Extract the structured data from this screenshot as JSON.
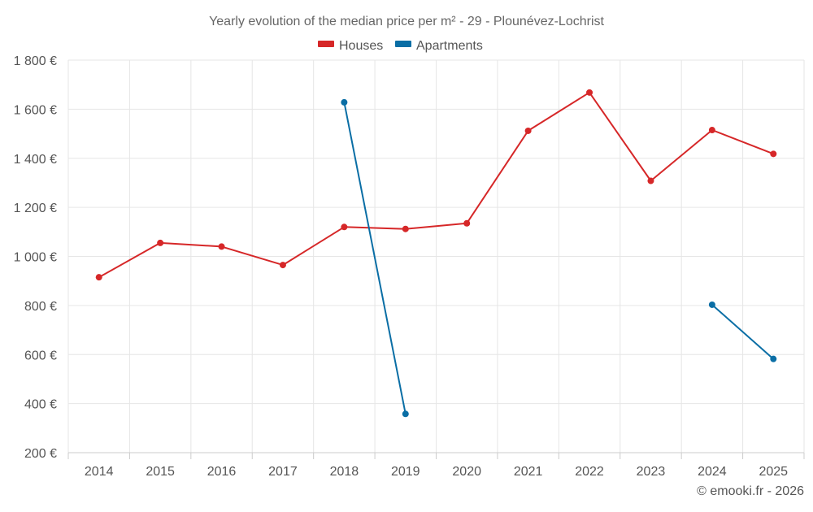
{
  "chart_data": {
    "type": "line",
    "title": "Yearly evolution of the median price per m² - 29 - Plounévez-Lochrist",
    "categories": [
      "2014",
      "2015",
      "2016",
      "2017",
      "2018",
      "2019",
      "2020",
      "2021",
      "2022",
      "2023",
      "2024",
      "2025"
    ],
    "series": [
      {
        "name": "Houses",
        "color": "#d62728",
        "values": [
          915,
          1055,
          1040,
          965,
          1120,
          1112,
          1135,
          1512,
          1668,
          1308,
          1515,
          1418
        ]
      },
      {
        "name": "Apartments",
        "color": "#0a6ea5",
        "values": [
          null,
          null,
          null,
          null,
          1628,
          358,
          null,
          null,
          null,
          null,
          803,
          582
        ]
      }
    ],
    "ylim": [
      200,
      1800
    ],
    "yticks": [
      200,
      400,
      600,
      800,
      1000,
      1200,
      1400,
      1600,
      1800
    ],
    "ytick_labels": [
      "200 €",
      "400 €",
      "600 €",
      "800 €",
      "1 000 €",
      "1 200 €",
      "1 400 €",
      "1 600 €",
      "1 800 €"
    ],
    "xlabel": "",
    "ylabel": "",
    "grid": true,
    "legend_position": "top-center"
  },
  "credit": "© emooki.fr - 2026"
}
